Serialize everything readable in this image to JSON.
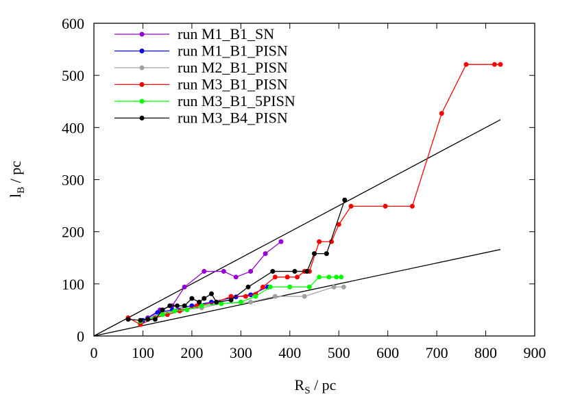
{
  "chart_data": {
    "type": "line",
    "x_label": [
      "R",
      "S",
      " / pc"
    ],
    "y_label": [
      "l",
      "B",
      " / pc"
    ],
    "xlim": [
      0,
      900
    ],
    "xticks": [
      0,
      100,
      200,
      300,
      400,
      500,
      600,
      700,
      800,
      900
    ],
    "ylim": [
      0,
      600
    ],
    "yticks": [
      0,
      100,
      200,
      300,
      400,
      500,
      600
    ],
    "legend": "top-left",
    "reference_lines": [
      {
        "color": "#000000",
        "x": [
          0,
          830
        ],
        "values": [
          0,
          415
        ]
      },
      {
        "color": "#000000",
        "x": [
          0,
          830
        ],
        "values": [
          0,
          166
        ]
      }
    ],
    "series": [
      {
        "name": "run M1_B1_SN",
        "color": "#9400d3",
        "x": [
          110,
          135,
          160,
          185,
          225,
          265,
          290,
          320,
          350,
          382
        ],
        "values": [
          35,
          50,
          58,
          94,
          124,
          124,
          113,
          124,
          158,
          181
        ]
      },
      {
        "name": "run M1_B1_PISN",
        "color": "#0000ff",
        "x": [
          100,
          130,
          160,
          200,
          240,
          290,
          320,
          355
        ],
        "values": [
          30,
          45,
          50,
          58,
          65,
          75,
          79,
          94
        ]
      },
      {
        "name": "run M2_B1_PISN",
        "color": "#a0a0a0",
        "x": [
          95,
          140,
          180,
          220,
          260,
          320,
          370,
          430,
          490,
          510
        ],
        "values": [
          28,
          45,
          50,
          54,
          62,
          65,
          76,
          76,
          94,
          94
        ]
      },
      {
        "name": "run M3_B1_PISN",
        "color": "#ff0000",
        "x": [
          70,
          95,
          125,
          150,
          175,
          210,
          250,
          280,
          310,
          330,
          345,
          370,
          395,
          415,
          430,
          440,
          460,
          485,
          500,
          525,
          595,
          650,
          710,
          760,
          818,
          830
        ],
        "values": [
          35,
          22,
          35,
          41,
          48,
          58,
          65,
          76,
          76,
          80,
          94,
          113,
          113,
          113,
          124,
          124,
          181,
          181,
          214,
          249,
          249,
          249,
          427,
          521,
          521,
          521
        ]
      },
      {
        "name": "run M3_B1_5PISN",
        "color": "#00ff00",
        "x": [
          95,
          140,
          165,
          190,
          220,
          260,
          300,
          330,
          360,
          400,
          440,
          460,
          480,
          495,
          505
        ],
        "values": [
          28,
          41,
          48,
          50,
          58,
          62,
          65,
          76,
          94,
          94,
          94,
          113,
          113,
          113,
          113
        ]
      },
      {
        "name": "run M3_B4_PISN",
        "color": "#000000",
        "x": [
          70,
          95,
          110,
          125,
          140,
          155,
          170,
          185,
          200,
          215,
          225,
          240,
          250,
          280,
          315,
          365,
          410,
          435,
          450,
          475,
          512
        ],
        "values": [
          32,
          30,
          32,
          32,
          50,
          58,
          58,
          58,
          72,
          65,
          72,
          81,
          65,
          69,
          94,
          124,
          124,
          124,
          158,
          158,
          261
        ]
      }
    ]
  }
}
